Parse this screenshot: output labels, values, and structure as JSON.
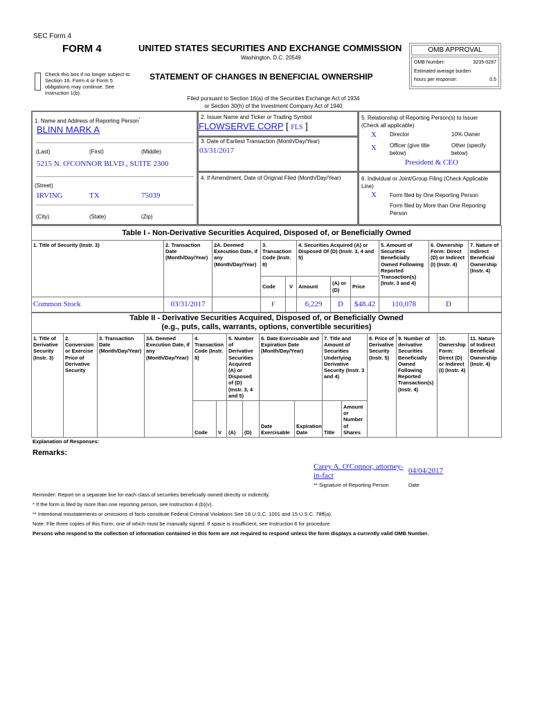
{
  "header": {
    "sec_form": "SEC Form 4",
    "form": "FORM 4",
    "commission": "UNITED STATES SECURITIES AND EXCHANGE COMMISSION",
    "address": "Washington, D.C. 20549",
    "statement": "STATEMENT OF CHANGES IN BENEFICIAL OWNERSHIP",
    "checkbox_text": "Check this box if no longer subject to Section 16. Form 4 or Form 5 obligations may continue. See Instruction 1(b).",
    "filed1": "Filed pursuant to Section 16(a) of the Securities Exchange Act of 1934",
    "filed2": "or Section 30(h) of the Investment Company Act of 1940"
  },
  "omb": {
    "title": "OMB APPROVAL",
    "number_label": "OMB Number:",
    "number": "3235-0287",
    "burden_label": "Estimated average burden",
    "hours_label": "hours per response:",
    "hours": "0.5"
  },
  "box1": {
    "label": "1. Name and Address of Reporting Person",
    "asterisk": "*",
    "name": "BLINN MARK A",
    "last": "(Last)",
    "first": "(First)",
    "middle": "(Middle)",
    "street_value": "5215 N. O'CONNOR BLVD., SUITE 2300",
    "street": "(Street)",
    "city_value": "IRVING",
    "state_value": "TX",
    "zip_value": "75039",
    "city": "(City)",
    "state": "(State)",
    "zip": "(Zip)"
  },
  "box2": {
    "label": "2. Issuer Name and Ticker or Trading Symbol",
    "issuer": "FLOWSERVE CORP",
    "ticker": "FLS"
  },
  "box3": {
    "label": "3. Date of Earliest Transaction (Month/Day/Year)",
    "value": "03/31/2017"
  },
  "box4": {
    "label": "4. If Amendment, Date of Original Filed (Month/Day/Year)"
  },
  "box5": {
    "label": "5. Relationship of Reporting Person(s) to Issuer (Check all applicable)",
    "mark": "X",
    "director": "Director",
    "owner": "10% Owner",
    "officer": "Officer (give title below)",
    "other": "Other (specify below)",
    "title": "President & CEO"
  },
  "box6": {
    "label": "6. Individual or Joint/Group Filing (Check Applicable Line)",
    "mark": "X",
    "one": "Form filed by One Reporting Person",
    "more": "Form filed by More than One Reporting Person"
  },
  "table1": {
    "title": "Table I - Non-Derivative Securities Acquired, Disposed of, or Beneficially Owned",
    "headers": [
      "1. Title of Security (Instr. 3)",
      "2. Transaction Date (Month/Day/Year)",
      "2A. Deemed Execution Date, if any (Month/Day/Year)",
      "3. Transaction Code (Instr. 8)",
      "4. Securities Acquired (A) or Disposed Of (D) (Instr. 3, 4 and 5)",
      "5. Amount of Securities Beneficially Owned Following Reported Transaction(s) (Instr. 3 and 4)",
      "6. Ownership Form: Direct (D) or Indirect (I) (Instr. 4)",
      "7. Nature of Indirect Beneficial Ownership (Instr. 4)"
    ],
    "sub": [
      "Code",
      "V",
      "Amount",
      "(A) or (D)",
      "Price"
    ],
    "rows": [
      {
        "title": "Common Stock",
        "date": "03/31/2017",
        "deemed": "",
        "code": "F",
        "v": "",
        "amount": "6,229",
        "ad": "D",
        "price": "$48.42",
        "owned": "110,078",
        "form": "D",
        "nature": ""
      }
    ]
  },
  "table2": {
    "title1": "Table II - Derivative Securities Acquired, Disposed of, or Beneficially Owned",
    "title2": "(e.g., puts, calls, warrants, options, convertible securities)",
    "headers": [
      "1. Title of Derivative Security (Instr. 3)",
      "2. Conversion or Exercise Price of Derivative Security",
      "3. Transaction Date (Month/Day/Year)",
      "3A. Deemed Execution Date, if any (Month/Day/Year)",
      "4. Transaction Code (Instr. 8)",
      "5. Number of Derivative Securities Acquired (A) or Disposed of (D) (Instr. 3, 4 and 5)",
      "6. Date Exercisable and Expiration Date (Month/Day/Year)",
      "7. Title and Amount of Securities Underlying Derivative Security (Instr. 3 and 4)",
      "8. Price of Derivative Security (Instr. 5)",
      "9. Number of derivative Securities Beneficially Owned Following Reported Transaction(s) (Instr. 4)",
      "10. Ownership Form: Direct (D) or Indirect (I) (Instr. 4)",
      "11. Nature of Indirect Beneficial Ownership (Instr. 4)"
    ],
    "sub": [
      "Code",
      "V",
      "(A)",
      "(D)",
      "Date Exercisable",
      "Expiration Date",
      "Title",
      "Amount or Number of Shares"
    ]
  },
  "footer": {
    "explanation": "Explanation of Responses:",
    "remarks": "Remarks:",
    "signature": "Carey A. O'Connor, attorney-in-fact",
    "sig_date": "04/04/2017",
    "sig_label": "** Signature of Reporting Person",
    "date_label": "Date",
    "reminder": "Reminder: Report on a separate line for each class of securities beneficially owned directly or indirectly.",
    "note1": "* If the form is filed by more than one reporting person, see Instruction 4 (b)(v).",
    "note2": "** Intentional misstatements or omissions of facts constitute Federal Criminal Violations See 18 U.S.C. 1001 and 15 U.S.C. 78ff(a).",
    "note3": "Note: File three copies of this Form, one of which must be manually signed. If space is insufficient, see Instruction 6 for procedure.",
    "note4": "Persons who respond to the collection of information contained in this form are not required to respond unless the form displays a currently valid OMB Number."
  }
}
